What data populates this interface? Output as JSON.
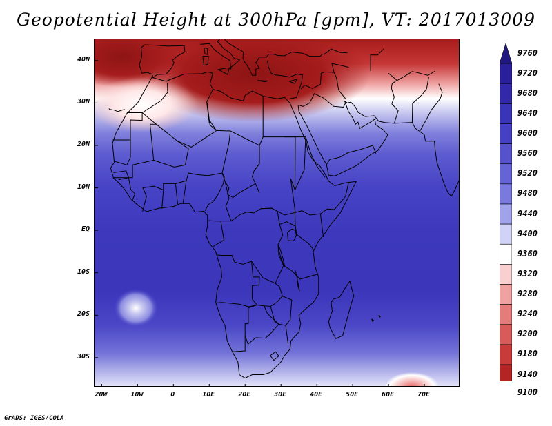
{
  "title": "Geopotential Height at 300hPa [gpm], VT: 2017013009",
  "credit": "GrADS: IGES/COLA",
  "map": {
    "lat_ticks": [
      {
        "label": "40N",
        "value": 40
      },
      {
        "label": "30N",
        "value": 30
      },
      {
        "label": "20N",
        "value": 20
      },
      {
        "label": "10N",
        "value": 10
      },
      {
        "label": "EQ",
        "value": 0
      },
      {
        "label": "10S",
        "value": -10
      },
      {
        "label": "20S",
        "value": -20
      },
      {
        "label": "30S",
        "value": -30
      }
    ],
    "lon_ticks": [
      {
        "label": "20W",
        "value": -20
      },
      {
        "label": "10W",
        "value": -10
      },
      {
        "label": "0",
        "value": 0
      },
      {
        "label": "10E",
        "value": 10
      },
      {
        "label": "20E",
        "value": 20
      },
      {
        "label": "30E",
        "value": 30
      },
      {
        "label": "40E",
        "value": 40
      },
      {
        "label": "50E",
        "value": 50
      },
      {
        "label": "60E",
        "value": 60
      },
      {
        "label": "70E",
        "value": 70
      }
    ],
    "lon_range": [
      -22,
      80
    ],
    "lat_range": [
      -37,
      45
    ]
  },
  "colorbar": {
    "levels": [
      "9760",
      "9720",
      "9680",
      "9640",
      "9600",
      "9560",
      "9520",
      "9480",
      "9440",
      "9400",
      "9360",
      "9320",
      "9280",
      "9240",
      "9200",
      "9180",
      "9140",
      "9100"
    ],
    "colors": [
      "#201880",
      "#2a1f9a",
      "#3128aa",
      "#3a34b8",
      "#4640c4",
      "#5552cc",
      "#6564d4",
      "#7a7ade",
      "#a0a2ea",
      "#d0d2f6",
      "#ffffff",
      "#f8d0d0",
      "#f0a2a2",
      "#e47c7c",
      "#d85a5a",
      "#c93a3a",
      "#b52424",
      "#9e1818"
    ]
  },
  "colors": {
    "land_outline": "#000000",
    "deep_blue": "#3a34b8",
    "deep_red": "#a01a1a"
  }
}
